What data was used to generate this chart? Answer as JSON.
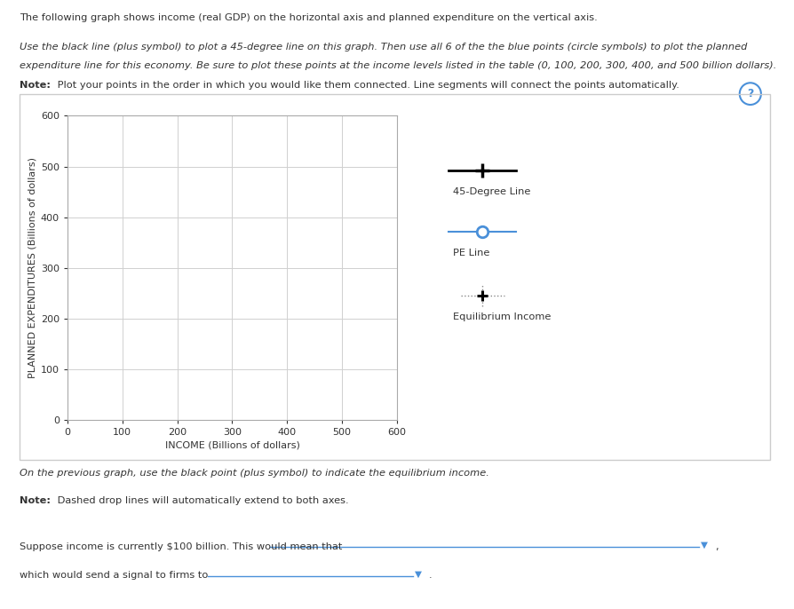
{
  "title_text": "The following graph shows income (real GDP) on the horizontal axis and planned expenditure on the vertical axis.",
  "instr_line1": "Use the black line (plus symbol) to plot a 45-degree line on this graph. Then use all 6 of the the blue points (circle symbols) to plot the planned",
  "instr_line2": "expenditure line for this economy. Be sure to plot these points at the income levels listed in the table (0, 100, 200, 300, 400, and 500 billion dollars).",
  "note1": "Note: Plot your points in the order in which you would like them connected. Line segments will connect the points automatically.",
  "xlabel": "INCOME (Billions of dollars)",
  "ylabel": "PLANNED EXPENDITURES (Billions of dollars)",
  "xlim": [
    0,
    600
  ],
  "ylim": [
    0,
    600
  ],
  "xticks": [
    0,
    100,
    200,
    300,
    400,
    500,
    600
  ],
  "yticks": [
    0,
    100,
    200,
    300,
    400,
    500,
    600
  ],
  "legend_labels": [
    "45-Degree Line",
    "PE Line",
    "Equilibrium Income"
  ],
  "bg_color": "#ffffff",
  "plot_bg_color": "#ffffff",
  "grid_color": "#d0d0d0",
  "text_color": "#333333",
  "blue_color": "#4a90d9",
  "instruction2": "On the previous graph, use the black point (plus symbol) to indicate the equilibrium income.",
  "note2": "Note: Dashed drop lines will automatically extend to both axes.",
  "question1": "Suppose income is currently $100 billion. This would mean that",
  "question2": "which would send a signal to firms to",
  "box_edge_color": "#cccccc",
  "question_mark_color": "#4a90d9"
}
